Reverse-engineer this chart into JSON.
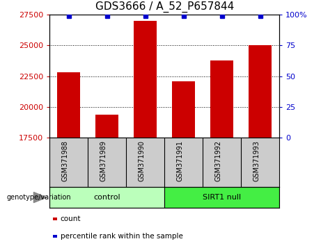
{
  "title": "GDS3666 / A_52_P657844",
  "samples": [
    "GSM371988",
    "GSM371989",
    "GSM371990",
    "GSM371991",
    "GSM371992",
    "GSM371993"
  ],
  "bar_values": [
    22800,
    19400,
    27000,
    22100,
    23800,
    25000
  ],
  "percentile_values": [
    99,
    99,
    99,
    99,
    99,
    99
  ],
  "bar_color": "#cc0000",
  "dot_color": "#0000cc",
  "ymin": 17500,
  "ymax": 27500,
  "yticks": [
    17500,
    20000,
    22500,
    25000,
    27500
  ],
  "right_yticks": [
    0,
    25,
    50,
    75,
    100
  ],
  "right_ytick_labels": [
    "0",
    "25",
    "50",
    "75",
    "100%"
  ],
  "groups": [
    {
      "label": "control",
      "start": 0,
      "end": 3,
      "color": "#bbffbb"
    },
    {
      "label": "SIRT1 null",
      "start": 3,
      "end": 6,
      "color": "#44ee44"
    }
  ],
  "genotype_label": "genotype/variation",
  "legend_bar_label": "count",
  "legend_dot_label": "percentile rank within the sample",
  "bg_color": "#ffffff",
  "sample_box_color": "#cccccc",
  "title_fontsize": 11,
  "tick_fontsize": 8,
  "sample_fontsize": 7
}
